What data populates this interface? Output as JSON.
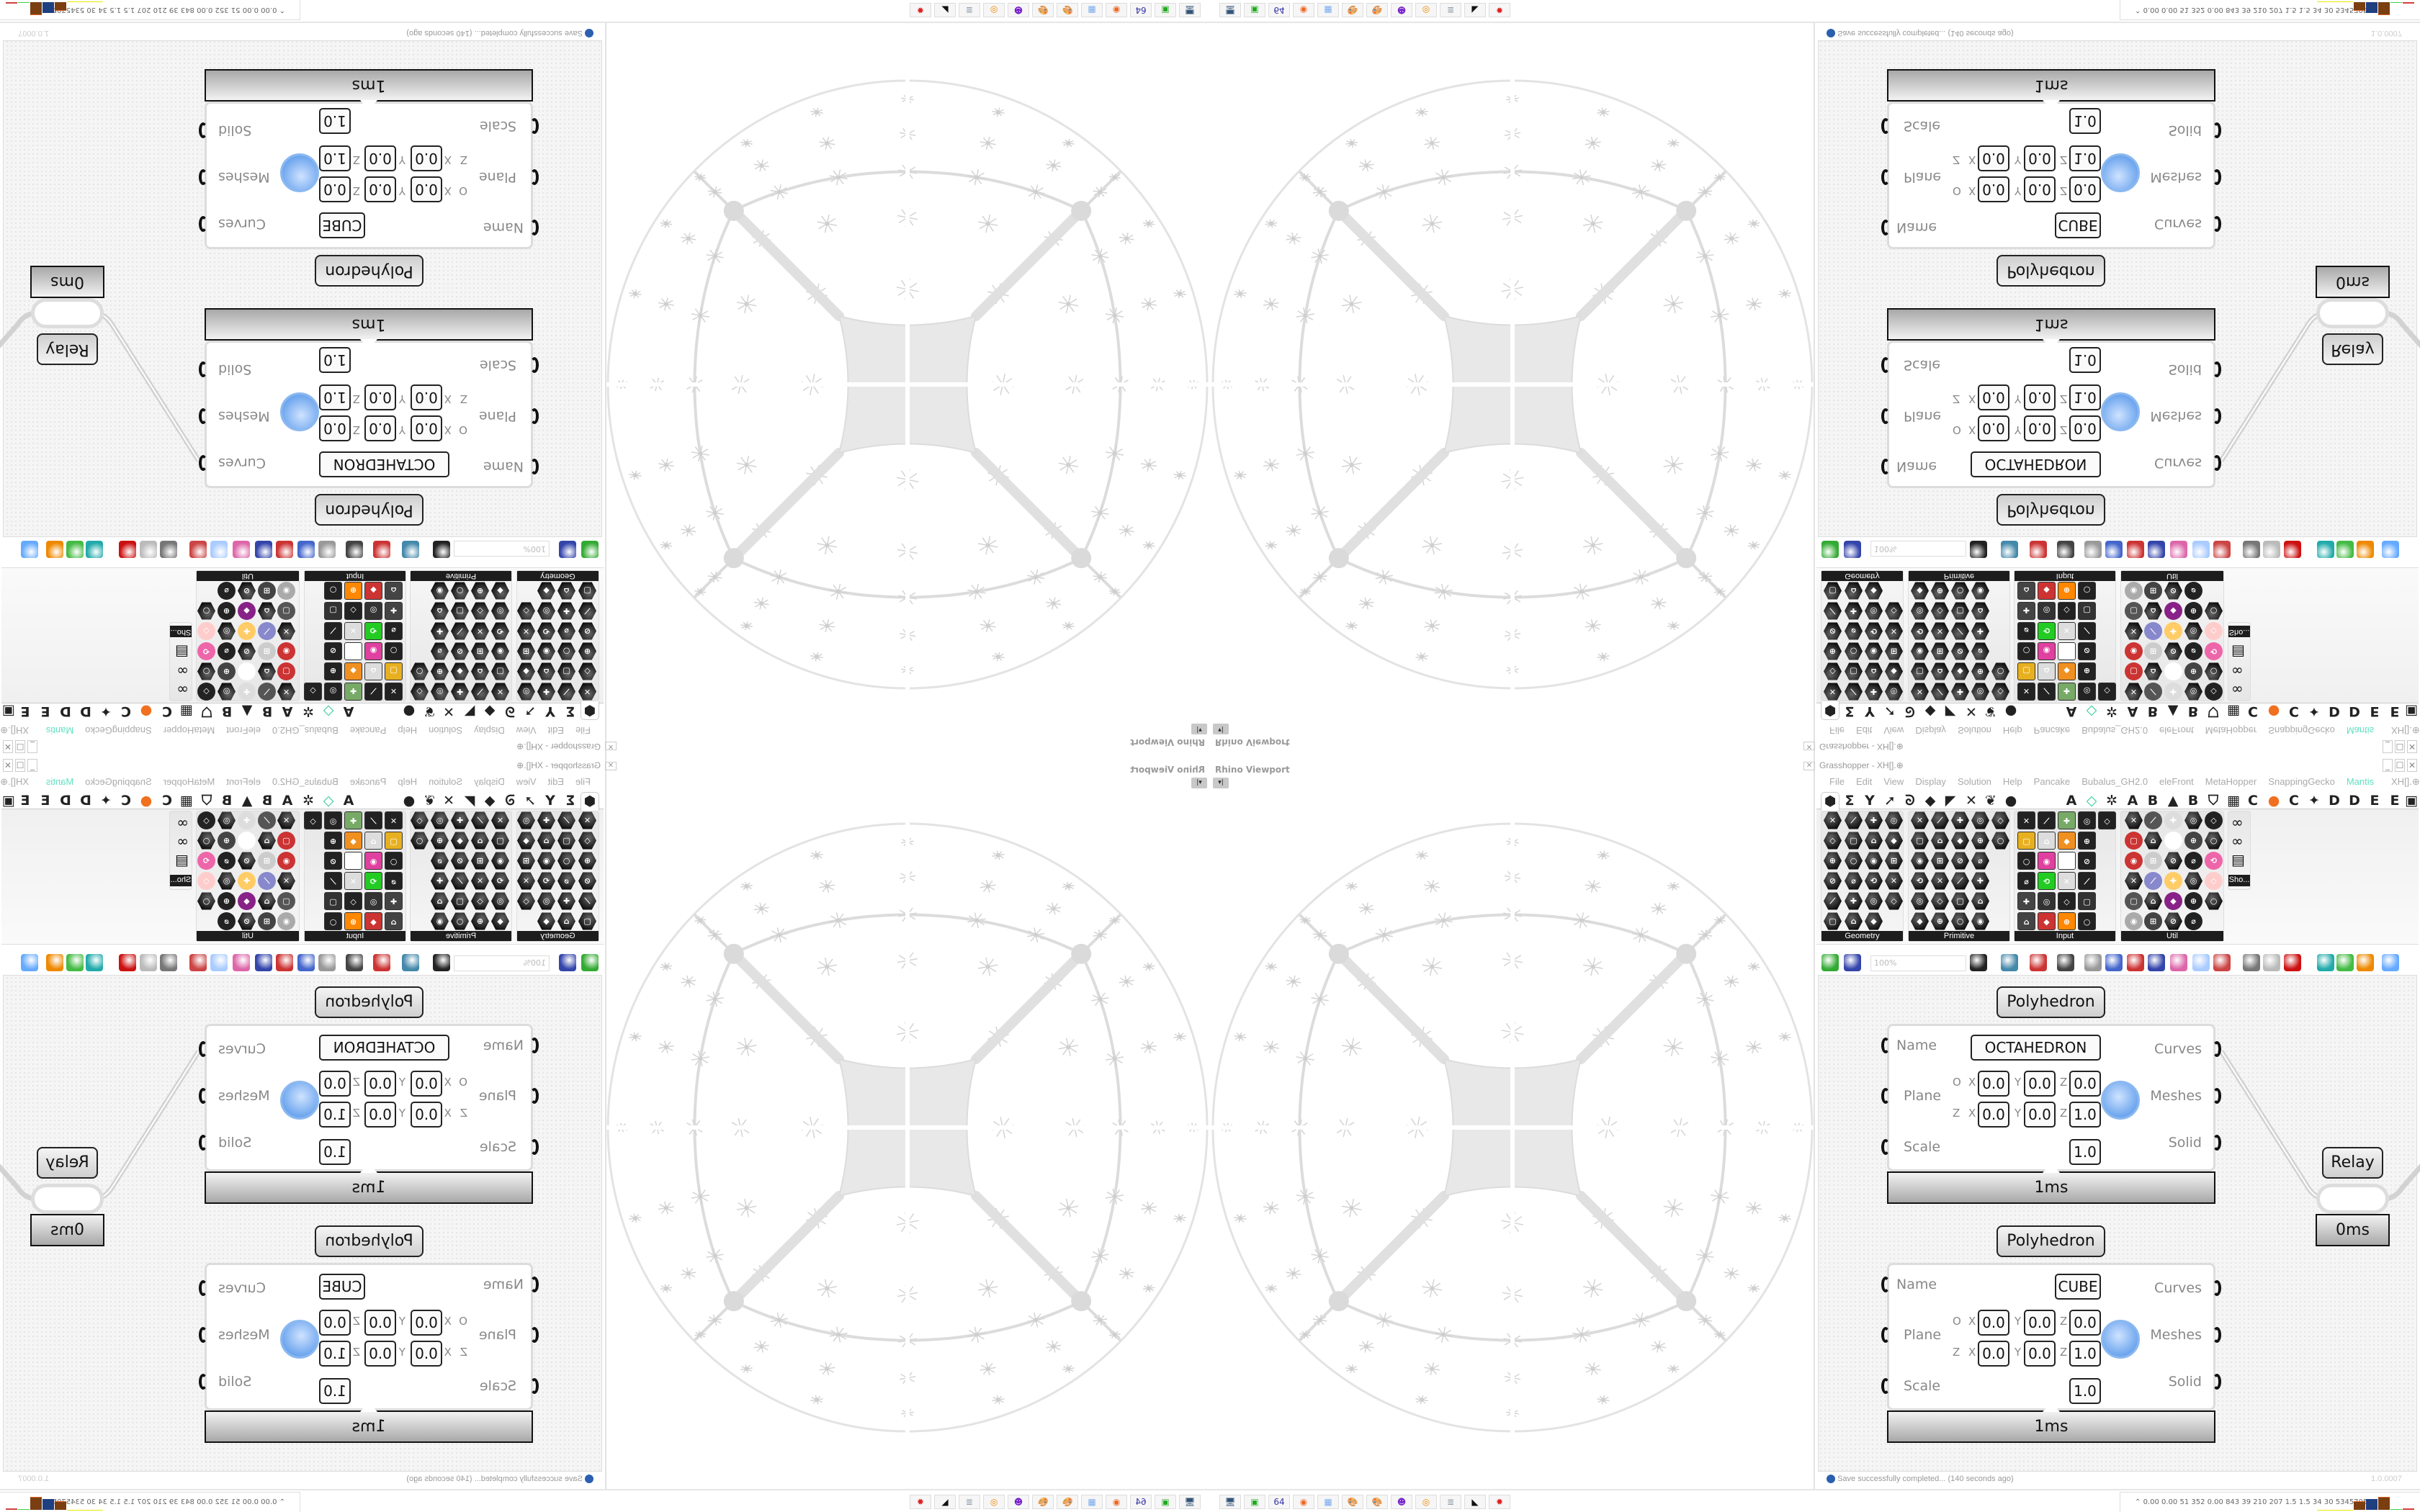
{
  "viewport": {
    "title": "Rhino Viewport",
    "dropdown_glyph": "▾|",
    "close_glyph": "✕"
  },
  "gh": {
    "title": "Grasshopper - XH[].⊕",
    "window_buttons": [
      "_",
      "☐",
      "✕"
    ],
    "menu": [
      "File",
      "Edit",
      "View",
      "Display",
      "Solution",
      "Help",
      "Pancake",
      "Bubalus_GH2.0",
      "eleFront",
      "MetaHopper",
      "SnappingGecko",
      "Mantis"
    ],
    "active_menu_color": "#5fe0c0",
    "menu_right": "XH[].⊕",
    "tabs": [
      "⬢",
      "Σ",
      "Y",
      "➚",
      "ᘐ",
      "◆",
      "◤",
      "✕",
      "❦",
      "●",
      "A",
      "◇",
      "✲",
      "A",
      "B",
      "▲",
      "B",
      "⛉",
      "▦",
      "C",
      "●",
      "C",
      "✦",
      "D",
      "D",
      "E",
      "E",
      "▣"
    ],
    "ribbon": {
      "panels": [
        {
          "label": "Geometry",
          "rows": [
            4,
            4,
            4,
            4,
            4,
            3
          ],
          "style": "hex"
        },
        {
          "label": "Primitive",
          "rows": [
            5,
            5,
            4,
            4,
            4,
            4
          ],
          "style": "hex"
        },
        {
          "label": "Input",
          "rows": [
            5,
            4,
            4,
            4,
            4,
            4
          ],
          "style": "square"
        },
        {
          "label": "Util",
          "rows": [
            5,
            5,
            5,
            5,
            5,
            4
          ],
          "style": "mixed"
        }
      ],
      "extra_label": "Sho..."
    },
    "toolbar": {
      "zoom": "100%"
    },
    "components": [
      {
        "title": "Polyhedron",
        "inputs": [
          "Name",
          "Plane",
          "Scale"
        ],
        "outputs": [
          "Curves",
          "Meshes",
          "Solid"
        ],
        "name_value": "OCTAHEDRON",
        "origin_label": "O",
        "zaxis_label": "Z",
        "axes": [
          "X",
          "Y",
          "Z"
        ],
        "origin": [
          "0.0",
          "0.0",
          "0.0"
        ],
        "zaxis": [
          "0.0",
          "0.0",
          "1.0"
        ],
        "scale": "1.0",
        "time": "1ms"
      },
      {
        "title": "Polyhedron",
        "inputs": [
          "Name",
          "Plane",
          "Scale"
        ],
        "outputs": [
          "Curves",
          "Meshes",
          "Solid"
        ],
        "name_value": "CUBE",
        "origin_label": "O",
        "zaxis_label": "Z",
        "axes": [
          "X",
          "Y",
          "Z"
        ],
        "origin": [
          "0.0",
          "0.0",
          "0.0"
        ],
        "zaxis": [
          "0.0",
          "0.0",
          "1.0"
        ],
        "scale": "1.0",
        "time": "1ms"
      }
    ],
    "relay": {
      "title": "Relay",
      "time": "0ms"
    },
    "status": {
      "message": "Save successfully completed... (140 seconds ago)",
      "version": "1.0.0007"
    }
  },
  "taskbar": {
    "apps": [
      {
        "icon": "monitor-icon",
        "glyph": "🖥"
      },
      {
        "icon": "terminal-icon",
        "glyph": "▣"
      },
      {
        "icon": "floppy-icon",
        "glyph": "64"
      },
      {
        "icon": "firefox-icon",
        "glyph": "◉"
      },
      {
        "icon": "calculator-icon",
        "glyph": "▦"
      },
      {
        "icon": "paint-icon",
        "glyph": "🎨"
      },
      {
        "icon": "paint-icon",
        "glyph": "🎨"
      },
      {
        "icon": "chat-icon",
        "glyph": "☻"
      },
      {
        "icon": "blender-icon",
        "glyph": "◎"
      },
      {
        "icon": "scroll-icon",
        "glyph": "≣"
      },
      {
        "icon": "rhino-icon",
        "glyph": "◣"
      },
      {
        "icon": "bug-icon",
        "glyph": "✹"
      }
    ],
    "stats": "0.00 0.00  51  352 0.00 843  39  210  207  1.5  1.5  34  30  53457054"
  }
}
